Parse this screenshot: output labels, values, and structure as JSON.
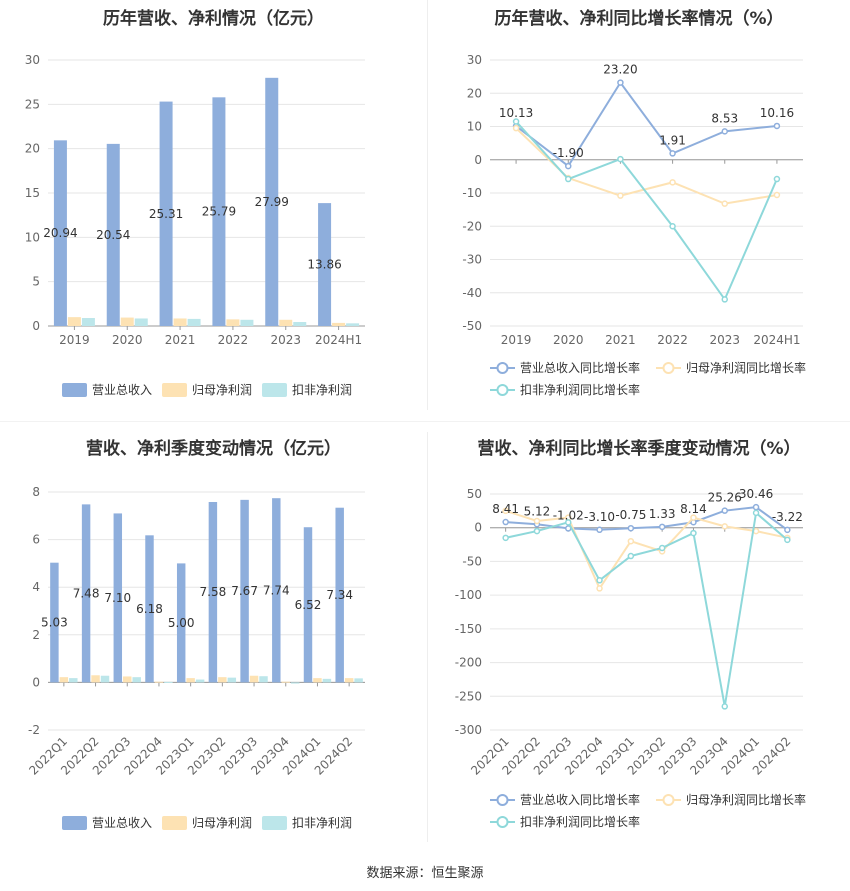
{
  "source_label": "数据来源：恒生聚源",
  "chart_data": [
    {
      "id": "annual_amounts",
      "type": "bar",
      "title": "历年营收、净利情况（亿元）",
      "categories": [
        "2019",
        "2020",
        "2021",
        "2022",
        "2023",
        "2024H1"
      ],
      "series": [
        {
          "name": "营业总收入",
          "color": "#8eaedc",
          "values": [
            20.94,
            20.54,
            25.31,
            25.79,
            27.99,
            13.86
          ],
          "labels": [
            "20.94",
            "20.54",
            "25.31",
            "25.79",
            "27.99",
            "13.86"
          ]
        },
        {
          "name": "归母净利润",
          "color": "#fde2b3",
          "values": [
            1.0,
            0.95,
            0.85,
            0.75,
            0.7,
            0.35
          ]
        },
        {
          "name": "扣非净利润",
          "color": "#bce6ea",
          "values": [
            0.9,
            0.85,
            0.8,
            0.7,
            0.45,
            0.3
          ]
        }
      ],
      "ylim": [
        0,
        30
      ],
      "yticks": [
        0,
        5,
        10,
        15,
        20,
        25,
        30
      ],
      "grid": true,
      "legend": "bottom"
    },
    {
      "id": "annual_growth",
      "type": "line",
      "title": "历年营收、净利同比增长率情况（%）",
      "categories": [
        "2019",
        "2020",
        "2021",
        "2022",
        "2023",
        "2024H1"
      ],
      "series": [
        {
          "name": "营业总收入同比增长率",
          "color": "#8eaedc",
          "values": [
            10.13,
            -1.9,
            23.2,
            1.91,
            8.53,
            10.16
          ],
          "labels": [
            "10.13",
            "-1.90",
            "23.20",
            "1.91",
            "8.53",
            "10.16"
          ]
        },
        {
          "name": "归母净利润同比增长率",
          "color": "#fde2b3",
          "values": [
            9.5,
            -5.5,
            -10.8,
            -6.8,
            -13.2,
            -10.6
          ]
        },
        {
          "name": "扣非净利润同比增长率",
          "color": "#8ed8da",
          "values": [
            11.5,
            -5.8,
            0.2,
            -20.0,
            -42.0,
            -5.8
          ]
        }
      ],
      "ylim": [
        -50,
        30
      ],
      "yticks": [
        -50,
        -40,
        -30,
        -20,
        -10,
        0,
        10,
        20,
        30
      ],
      "grid": true,
      "legend": "bottom"
    },
    {
      "id": "quarterly_amounts",
      "type": "bar",
      "title": "营收、净利季度变动情况（亿元）",
      "categories": [
        "2022Q1",
        "2022Q2",
        "2022Q3",
        "2022Q4",
        "2023Q1",
        "2023Q2",
        "2023Q3",
        "2023Q4",
        "2024Q1",
        "2024Q2"
      ],
      "series": [
        {
          "name": "营业总收入",
          "color": "#8eaedc",
          "values": [
            5.03,
            7.48,
            7.1,
            6.18,
            5.0,
            7.58,
            7.67,
            7.74,
            6.52,
            7.34
          ],
          "labels": [
            "5.03",
            "7.48",
            "7.10",
            "6.18",
            "5.00",
            "7.58",
            "7.67",
            "7.74",
            "6.52",
            "7.34"
          ]
        },
        {
          "name": "归母净利润",
          "color": "#fde2b3",
          "values": [
            0.22,
            0.3,
            0.25,
            0.03,
            0.18,
            0.22,
            0.28,
            0.03,
            0.18,
            0.18
          ]
        },
        {
          "name": "扣非净利润",
          "color": "#bce6ea",
          "values": [
            0.18,
            0.28,
            0.22,
            0.02,
            0.12,
            0.2,
            0.26,
            -0.05,
            0.15,
            0.17
          ]
        }
      ],
      "ylim": [
        -2,
        8
      ],
      "yticks": [
        -2,
        0,
        2,
        4,
        6,
        8
      ],
      "grid": true,
      "legend": "bottom"
    },
    {
      "id": "quarterly_growth",
      "type": "line",
      "title": "营收、净利同比增长率季度变动情况（%）",
      "categories": [
        "2022Q1",
        "2022Q2",
        "2022Q3",
        "2022Q4",
        "2023Q1",
        "2023Q2",
        "2023Q3",
        "2023Q4",
        "2024Q1",
        "2024Q2"
      ],
      "series": [
        {
          "name": "营业总收入同比增长率",
          "color": "#8eaedc",
          "values": [
            8.41,
            5.12,
            -1.02,
            -3.1,
            -0.75,
            1.33,
            8.14,
            25.26,
            30.46,
            -3.22
          ],
          "labels": [
            "8.41",
            "5.12",
            "-1.02",
            "-3.10",
            "-0.75",
            "1.33",
            "8.14",
            "25.26",
            "30.46",
            "-3.22"
          ]
        },
        {
          "name": "归母净利润同比增长率",
          "color": "#fde2b3",
          "values": [
            25,
            10,
            15,
            -90,
            -20,
            -35,
            15,
            2,
            -5,
            -15
          ]
        },
        {
          "name": "扣非净利润同比增长率",
          "color": "#8ed8da",
          "values": [
            -15,
            -5,
            8,
            -78,
            -42,
            -30,
            -8,
            -265,
            22,
            -18
          ]
        }
      ],
      "ylim": [
        -300,
        50
      ],
      "yticks": [
        -300,
        -250,
        -200,
        -150,
        -100,
        -50,
        0,
        50
      ],
      "grid": true,
      "legend": "bottom"
    }
  ]
}
